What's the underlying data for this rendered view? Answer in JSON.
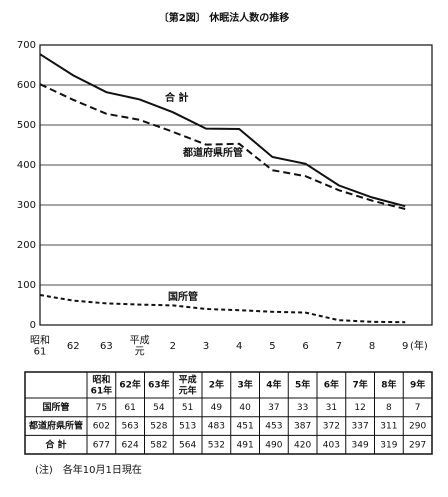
{
  "chart_data": {
    "type": "line",
    "title": "〔第2図〕 休眠法人数の推移",
    "categories": [
      "昭和\n61",
      "62",
      "63",
      "平成\n元",
      "2",
      "3",
      "4",
      "5",
      "6",
      "7",
      "8",
      "9"
    ],
    "x_unit": "(年)",
    "series": [
      {
        "name": "国所管",
        "color": "#111111",
        "line_style": "dashed-fine",
        "values": [
          75,
          61,
          54,
          51,
          49,
          40,
          37,
          33,
          31,
          12,
          8,
          7
        ]
      },
      {
        "name": "都道府県所管",
        "color": "#111111",
        "line_style": "dashed",
        "values": [
          602,
          563,
          528,
          513,
          483,
          451,
          453,
          387,
          372,
          337,
          311,
          290
        ]
      },
      {
        "name": "合 計",
        "color": "#111111",
        "line_style": "solid",
        "values": [
          677,
          624,
          582,
          564,
          532,
          491,
          490,
          420,
          403,
          349,
          319,
          297
        ]
      }
    ],
    "ylim": [
      0,
      700
    ],
    "yticks": [
      0,
      100,
      200,
      300,
      400,
      500,
      600,
      700
    ],
    "grid": true
  },
  "table": {
    "header": [
      "昭和\n61年",
      "62年",
      "63年",
      "平成\n元年",
      "2年",
      "3年",
      "4年",
      "5年",
      "6年",
      "7年",
      "8年",
      "9年"
    ]
  },
  "note": "(注)　各年10月1日現在"
}
